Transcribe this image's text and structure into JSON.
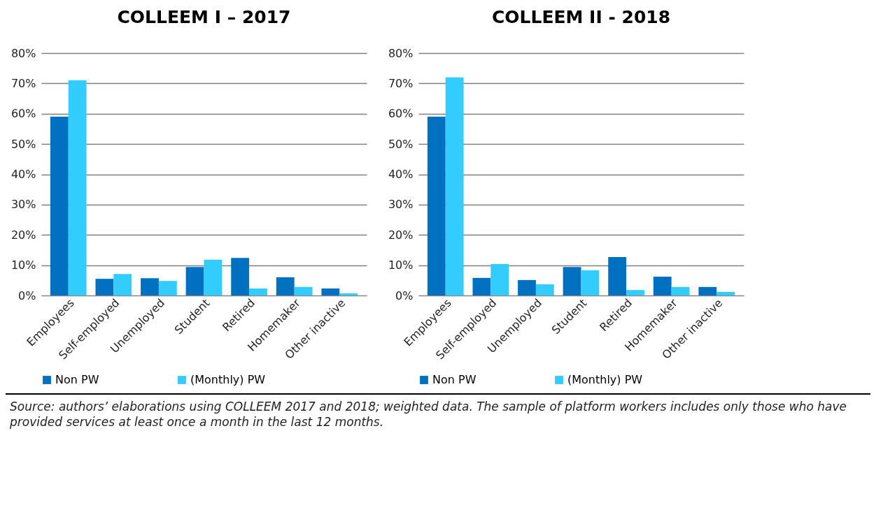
{
  "chart_data": [
    {
      "type": "bar",
      "title": "COLLEEM I – 2017",
      "categories": [
        "Employees",
        "Self-employed",
        "Unemployed",
        "Student",
        "Retired",
        "Homemaker",
        "Other inactive"
      ],
      "series": [
        {
          "name": "Non PW",
          "color": "#0070c0",
          "values": [
            59,
            5.5,
            5.7,
            9.4,
            12.4,
            6,
            2.3
          ]
        },
        {
          "name": "(Monthly) PW",
          "color": "#33ccff",
          "values": [
            71,
            7.1,
            4.8,
            11.8,
            2.3,
            2.8,
            0.7
          ]
        }
      ],
      "ylim": [
        0,
        80
      ],
      "yticks": [
        {
          "value": 0,
          "label": "0%"
        },
        {
          "value": 10,
          "label": "10%"
        },
        {
          "value": 20,
          "label": "20%"
        },
        {
          "value": 30,
          "label": "30%"
        },
        {
          "value": 40,
          "label": "40%"
        },
        {
          "value": 50,
          "label": "50%"
        },
        {
          "value": 60,
          "label": "60%"
        },
        {
          "value": 70,
          "label": "70%"
        },
        {
          "value": 80,
          "label": "80%"
        }
      ],
      "grid": "y",
      "legend": "bottom"
    },
    {
      "type": "bar",
      "title": "COLLEEM II - 2018",
      "categories": [
        "Employees",
        "Self-employed",
        "Unemployed",
        "Student",
        "Retired",
        "Homemaker",
        "Other inactive"
      ],
      "series": [
        {
          "name": "Non PW",
          "color": "#0070c0",
          "values": [
            59,
            5.8,
            5.1,
            9.4,
            12.7,
            6.2,
            2.8
          ]
        },
        {
          "name": "(Monthly) PW",
          "color": "#33ccff",
          "values": [
            72,
            10.4,
            3.7,
            8.3,
            1.8,
            2.8,
            1.2
          ]
        }
      ],
      "ylim": [
        0,
        80
      ],
      "yticks": [
        {
          "value": 0,
          "label": "0%"
        },
        {
          "value": 10,
          "label": "10%"
        },
        {
          "value": 20,
          "label": "20%"
        },
        {
          "value": 30,
          "label": "30%"
        },
        {
          "value": 40,
          "label": "40%"
        },
        {
          "value": 50,
          "label": "50%"
        },
        {
          "value": 60,
          "label": "60%"
        },
        {
          "value": 70,
          "label": "70%"
        },
        {
          "value": 80,
          "label": "80%"
        }
      ],
      "grid": "y",
      "legend": "bottom",
      "annotations": [
        "Source: authors’ elaborations using COLLEEM 2017 and 2018; weighted data. The sample of platform workers includes only those who have provided services at least once a month in the last 12 months."
      ]
    }
  ]
}
